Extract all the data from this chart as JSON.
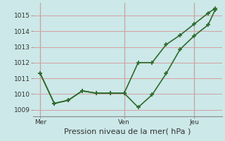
{
  "xlabel": "Pression niveau de la mer( hPa )",
  "bg_color": "#cce8e8",
  "grid_color": "#d4a0a0",
  "line_color": "#2d6b2d",
  "ylim": [
    1008.6,
    1015.8
  ],
  "xlim": [
    0.0,
    13.5
  ],
  "xtick_positions": [
    0.5,
    6.5,
    11.5
  ],
  "xtick_labels": [
    "Mer",
    "Ven",
    "Jeu"
  ],
  "vline_positions": [
    0.5,
    6.5,
    11.5
  ],
  "ytick_positions": [
    1009,
    1010,
    1011,
    1012,
    1013,
    1014,
    1015
  ],
  "line1_x": [
    0.5,
    1.5,
    2.5,
    3.5,
    4.5,
    5.5,
    6.5,
    7.5,
    8.5,
    9.5,
    10.5,
    11.5,
    12.5,
    13.0
  ],
  "line1_y": [
    1011.3,
    1009.4,
    1009.6,
    1010.2,
    1010.05,
    1010.05,
    1010.05,
    1009.15,
    1009.95,
    1011.3,
    1012.85,
    1013.7,
    1014.4,
    1015.35
  ],
  "line2_x": [
    0.5,
    1.5,
    2.5,
    3.5,
    4.5,
    5.5,
    6.5,
    7.5,
    8.5,
    9.5,
    10.5,
    11.5,
    12.5,
    13.0
  ],
  "line2_y": [
    1011.3,
    1009.4,
    1009.6,
    1010.2,
    1010.05,
    1010.05,
    1010.05,
    1012.0,
    1012.0,
    1013.15,
    1013.75,
    1014.45,
    1015.15,
    1015.45
  ],
  "xlabel_fontsize": 8,
  "tick_fontsize": 6.5,
  "marker": "+",
  "marker_size": 5,
  "linewidth": 1.2
}
